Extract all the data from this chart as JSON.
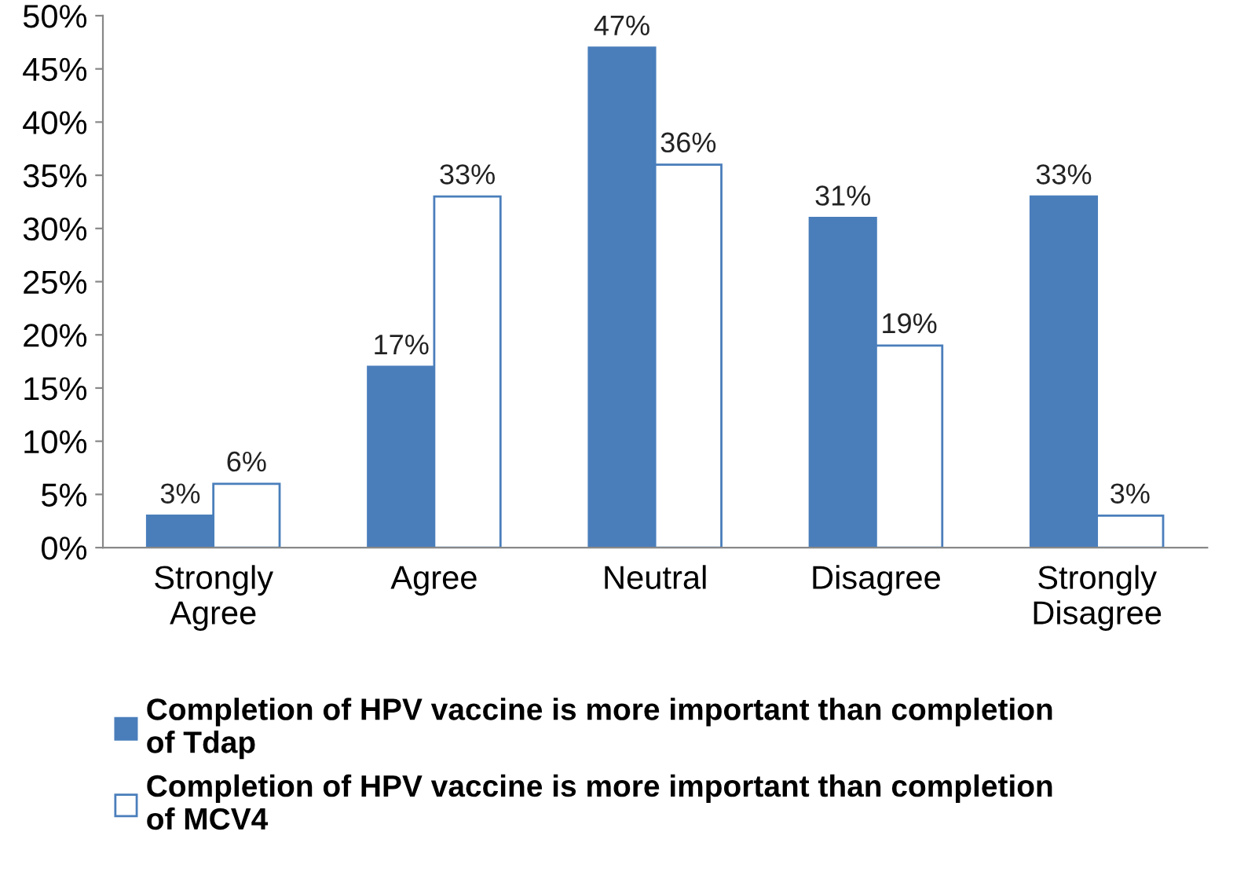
{
  "chart_data": {
    "type": "bar",
    "categories": [
      "Strongly\nAgree",
      "Agree",
      "Neutral",
      "Disagree",
      "Strongly\nDisagree"
    ],
    "series": [
      {
        "name": "Completion of HPV vaccine is more important than completion\nof Tdap",
        "color": "#4a7ebb",
        "values": [
          3,
          17,
          47,
          31,
          33
        ],
        "value_labels": [
          "3%",
          "17%",
          "47%",
          "31%",
          "33%"
        ]
      },
      {
        "name": "Completion of HPV vaccine is more important than completion\nof MCV4",
        "color": "#ffffff",
        "values": [
          6,
          33,
          36,
          19,
          3
        ],
        "value_labels": [
          "6%",
          "33%",
          "36%",
          "19%",
          "3%"
        ]
      }
    ],
    "ylim": [
      0,
      50
    ],
    "yticks": [
      {
        "value": 0,
        "label": "0%"
      },
      {
        "value": 5,
        "label": "5%"
      },
      {
        "value": 10,
        "label": "10%"
      },
      {
        "value": 15,
        "label": "15%"
      },
      {
        "value": 20,
        "label": "20%"
      },
      {
        "value": 25,
        "label": "25%"
      },
      {
        "value": 30,
        "label": "30%"
      },
      {
        "value": 35,
        "label": "35%"
      },
      {
        "value": 40,
        "label": "40%"
      },
      {
        "value": 45,
        "label": "45%"
      },
      {
        "value": 50,
        "label": "50%"
      }
    ],
    "grid": false,
    "legend": "bottom"
  }
}
